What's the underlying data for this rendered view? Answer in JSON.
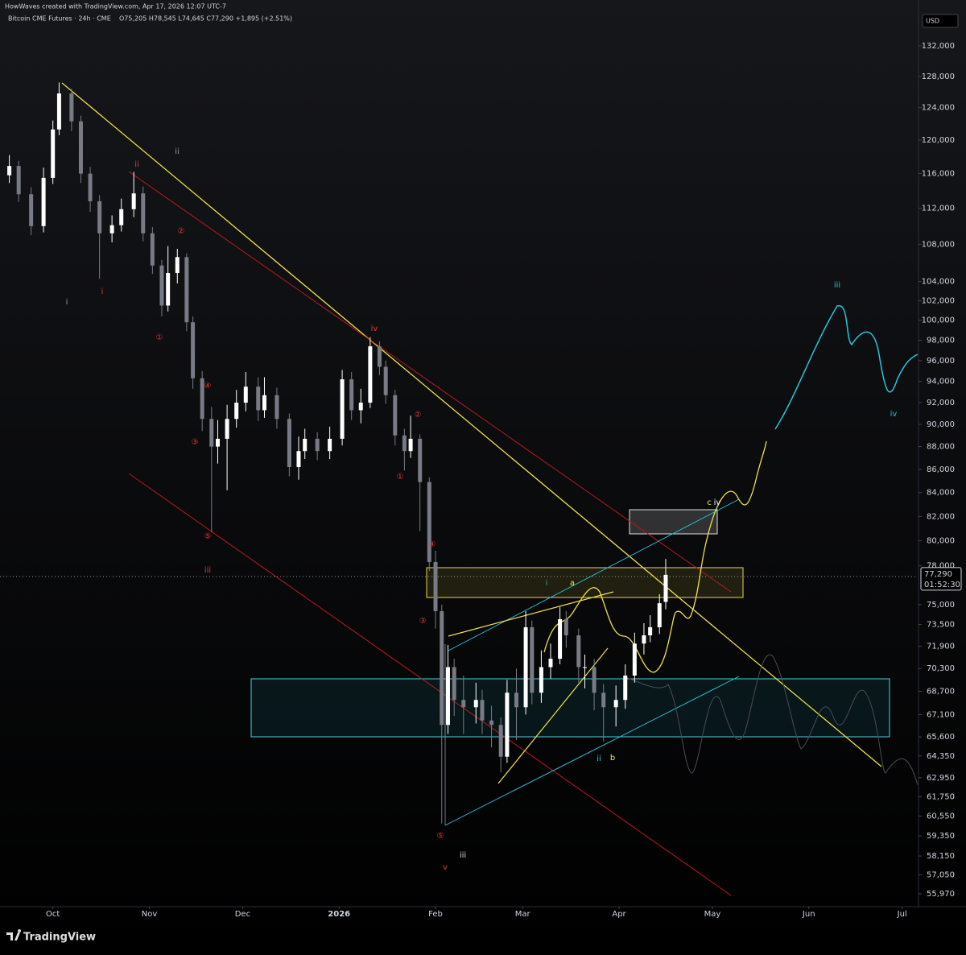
{
  "header": {
    "credit": "HowWaves created with TradingView.com, Apr 17, 2026 12:07 UTC-7",
    "symbol": "Bitcoin CME Futures · 24h · CME",
    "ohlc": "O75,205 H78,545 L74,645 C77,290 +1,895 (+2.51%)",
    "currency": "USD"
  },
  "footer": {
    "brand": "TradingView"
  },
  "chart_data": {
    "type": "candlestick",
    "up_color": "#ffffff",
    "down_color": "#787b86",
    "log_scale": true,
    "grid": false,
    "x": [
      -14,
      -11,
      -7,
      -3,
      0,
      2,
      6,
      9,
      12,
      15,
      19,
      22,
      26,
      29,
      32,
      35,
      37,
      40,
      43,
      45,
      48,
      51,
      53,
      56,
      59,
      62,
      66,
      68,
      72,
      76,
      79,
      81,
      85,
      89,
      93,
      96,
      99,
      102,
      105,
      107,
      110,
      113,
      115,
      118,
      121,
      123,
      125,
      127,
      129,
      132,
      136,
      138,
      141,
      144,
      146,
      149,
      152,
      154,
      157,
      160,
      163,
      165,
      169,
      171,
      174,
      177,
      181,
      184,
      187,
      190,
      192,
      195,
      197
    ],
    "open": [
      115800,
      116900,
      113600,
      110000,
      115500,
      121300,
      125800,
      122300,
      116000,
      112800,
      109200,
      110100,
      111900,
      113700,
      109200,
      105700,
      101500,
      104900,
      106600,
      99800,
      94300,
      90500,
      88000,
      88700,
      90500,
      92000,
      93500,
      91300,
      92700,
      90500,
      86200,
      87600,
      88700,
      87600,
      88700,
      94200,
      91300,
      92000,
      97400,
      95400,
      92700,
      89000,
      87600,
      88700,
      84900,
      78300,
      74500,
      66400,
      70400,
      68100,
      67600,
      68100,
      66700,
      66400,
      64300,
      68600,
      67600,
      73300,
      68600,
      70400,
      71000,
      73900,
      72700,
      70400,
      70400,
      68600,
      67600,
      68100,
      69800,
      72100,
      72700,
      73300,
      75205
    ],
    "high": [
      118200,
      117500,
      114400,
      116700,
      122400,
      127200,
      126400,
      123000,
      116800,
      113500,
      111200,
      113100,
      116200,
      114500,
      109900,
      106300,
      107800,
      107500,
      107000,
      100400,
      95000,
      91600,
      90400,
      91800,
      93200,
      94900,
      94400,
      94400,
      93400,
      91000,
      88900,
      89600,
      89300,
      89800,
      95100,
      94900,
      93300,
      98300,
      97900,
      96000,
      93200,
      89600,
      90800,
      89100,
      85300,
      79200,
      75000,
      72000,
      71000,
      69800,
      69300,
      68800,
      67700,
      66900,
      69500,
      70300,
      74500,
      73800,
      71600,
      72100,
      74800,
      74500,
      73200,
      71300,
      71000,
      69200,
      69100,
      70600,
      72900,
      73600,
      74200,
      75800,
      78545
    ],
    "low": [
      114900,
      112700,
      109000,
      109300,
      114800,
      120600,
      121100,
      114900,
      111600,
      104300,
      108200,
      109400,
      111000,
      108300,
      104800,
      100400,
      100900,
      103800,
      98900,
      93300,
      89400,
      80700,
      86500,
      84200,
      89700,
      91200,
      90300,
      90600,
      89600,
      85400,
      85100,
      86900,
      86800,
      86900,
      88100,
      90400,
      90100,
      91500,
      94600,
      91900,
      88100,
      85900,
      87000,
      80800,
      77600,
      73200,
      60100,
      65800,
      67000,
      65800,
      66500,
      65800,
      64900,
      63300,
      63900,
      65400,
      67100,
      67800,
      67900,
      69600,
      70600,
      71800,
      69300,
      68900,
      67400,
      65300,
      66300,
      67500,
      69300,
      71300,
      72200,
      72800,
      74645
    ],
    "close": [
      116900,
      113600,
      110000,
      115500,
      121300,
      125800,
      122300,
      116000,
      112800,
      109200,
      110100,
      111900,
      113700,
      109200,
      105700,
      101500,
      104900,
      106600,
      99800,
      94300,
      90500,
      88000,
      88700,
      90500,
      92000,
      93500,
      91300,
      92700,
      90500,
      86200,
      87600,
      88700,
      87600,
      88700,
      94200,
      91300,
      92000,
      97400,
      95400,
      92700,
      89000,
      87600,
      88700,
      84900,
      78300,
      74500,
      66400,
      70400,
      68100,
      67600,
      68100,
      66700,
      66400,
      64300,
      68600,
      67600,
      73300,
      68600,
      70400,
      71000,
      73900,
      72700,
      70400,
      70400,
      68600,
      67600,
      68100,
      69800,
      72100,
      72700,
      73300,
      75100,
      77290
    ],
    "last_price_label": "77,290",
    "countdown": "01:52:30",
    "xlim": [
      -17,
      278
    ],
    "xticks": [
      {
        "value": 0,
        "label": "Oct"
      },
      {
        "value": 31,
        "label": "Nov"
      },
      {
        "value": 61,
        "label": "Dec"
      },
      {
        "value": 92,
        "label": "2026"
      },
      {
        "value": 123,
        "label": "Feb"
      },
      {
        "value": 151,
        "label": "Mar"
      },
      {
        "value": 182,
        "label": "Apr"
      },
      {
        "value": 212,
        "label": "May"
      },
      {
        "value": 243,
        "label": "Jun"
      },
      {
        "value": 273,
        "label": "Jul"
      }
    ],
    "ylim": [
      55290,
      138277
    ],
    "yticks": [
      {
        "value": 132000,
        "label": "132,000"
      },
      {
        "value": 128000,
        "label": "128,000"
      },
      {
        "value": 124000,
        "label": "124,000"
      },
      {
        "value": 120000,
        "label": "120,000"
      },
      {
        "value": 116000,
        "label": "116,000"
      },
      {
        "value": 112000,
        "label": "112,000"
      },
      {
        "value": 108000,
        "label": "108,000"
      },
      {
        "value": 104000,
        "label": "104,000"
      },
      {
        "value": 102000,
        "label": "102,000"
      },
      {
        "value": 100000,
        "label": "100,000"
      },
      {
        "value": 98000,
        "label": "98,000"
      },
      {
        "value": 96000,
        "label": "96,000"
      },
      {
        "value": 94000,
        "label": "94,000"
      },
      {
        "value": 92000,
        "label": "92,000"
      },
      {
        "value": 90000,
        "label": "90,000"
      },
      {
        "value": 88000,
        "label": "88,000"
      },
      {
        "value": 86000,
        "label": "86,000"
      },
      {
        "value": 84000,
        "label": "84,000"
      },
      {
        "value": 82000,
        "label": "82,000"
      },
      {
        "value": 80000,
        "label": "80,000"
      },
      {
        "value": 78000,
        "label": "78,000"
      },
      {
        "value": 75000,
        "label": "75,000"
      },
      {
        "value": 73500,
        "label": "73,500"
      },
      {
        "value": 71900,
        "label": "71,900"
      },
      {
        "value": 70300,
        "label": "70,300"
      },
      {
        "value": 68700,
        "label": "68,700"
      },
      {
        "value": 67100,
        "label": "67,100"
      },
      {
        "value": 65600,
        "label": "65,600"
      },
      {
        "value": 64350,
        "label": "64,350"
      },
      {
        "value": 62950,
        "label": "62,950"
      },
      {
        "value": 61750,
        "label": "61,750"
      },
      {
        "value": 60550,
        "label": "60,550"
      },
      {
        "value": 59350,
        "label": "59,350"
      },
      {
        "value": 58150,
        "label": "58,150"
      },
      {
        "value": 57050,
        "label": "57,050"
      },
      {
        "value": 55970,
        "label": "55,970"
      }
    ],
    "annotations": [
      {
        "text": "ii",
        "color": "#9598a1"
      },
      {
        "text": "ii",
        "color": "#e53935"
      },
      {
        "text": "i",
        "color": "#9598a1"
      },
      {
        "text": "i",
        "color": "#e53935"
      },
      {
        "text": "②",
        "color": "#e53935"
      },
      {
        "text": "①",
        "color": "#e53935"
      },
      {
        "text": "④",
        "color": "#e53935"
      },
      {
        "text": "③",
        "color": "#e53935"
      },
      {
        "text": "⑤",
        "color": "#e53935"
      },
      {
        "text": "iii",
        "color": "#e53935"
      },
      {
        "text": "iv",
        "color": "#e53935"
      },
      {
        "text": "②",
        "color": "#e53935"
      },
      {
        "text": "①",
        "color": "#e53935"
      },
      {
        "text": "④",
        "color": "#e53935"
      },
      {
        "text": "③",
        "color": "#e53935"
      },
      {
        "text": "⑤",
        "color": "#e53935"
      },
      {
        "text": "v",
        "color": "#e53935"
      },
      {
        "text": "iii",
        "color": "#d1d4dc"
      },
      {
        "text": "i",
        "color": "#26a69a"
      },
      {
        "text": "a",
        "color": "#f5e050"
      },
      {
        "text": "ii",
        "color": "#26c6da"
      },
      {
        "text": "b",
        "color": "#f5e050"
      },
      {
        "text": "c",
        "color": "#f5e050"
      },
      {
        "text": "iv",
        "color": "#ffffff"
      },
      {
        "text": "iii",
        "color": "#26c6da"
      },
      {
        "text": "iv",
        "color": "#26c6da"
      }
    ]
  }
}
